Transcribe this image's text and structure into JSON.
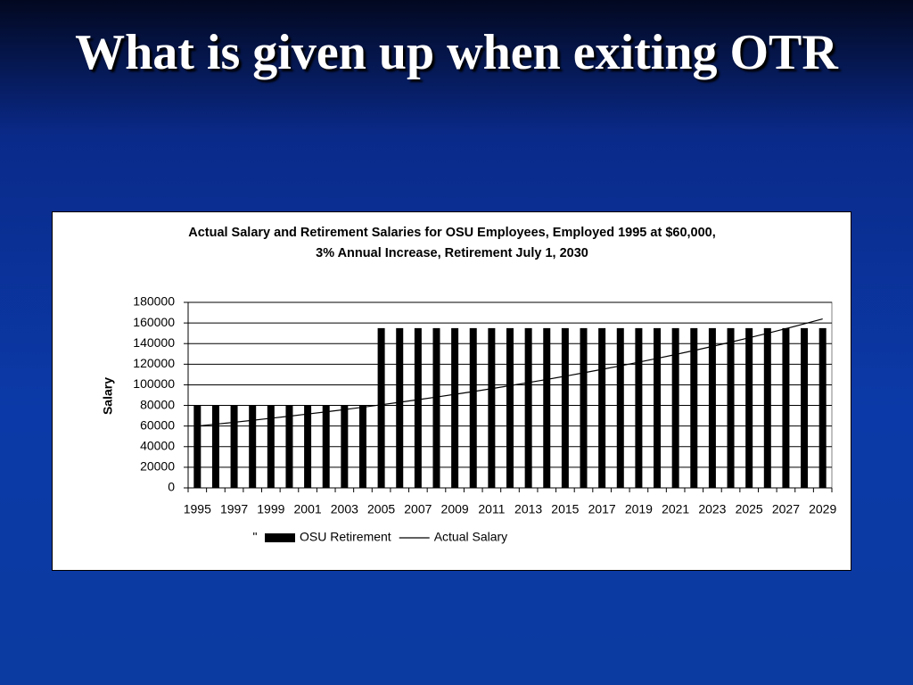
{
  "slide": {
    "title": "What is given up when exiting OTR"
  },
  "chart_data": {
    "type": "bar",
    "title": [
      "Actual Salary and Retirement Salaries for OSU Employees, Employed 1995 at $60,000,",
      "3% Annual Increase, Retirement July 1, 2030"
    ],
    "y_label": "Salary",
    "categories": [
      "1995",
      null,
      "1997",
      null,
      "1999",
      null,
      "2001",
      null,
      "2003",
      null,
      "2005",
      null,
      "2007",
      null,
      "2009",
      null,
      "2011",
      null,
      "2013",
      null,
      "2015",
      null,
      "2017",
      null,
      "2019",
      null,
      "2021",
      null,
      "2023",
      null,
      "2025",
      null,
      "2027",
      null,
      "2029"
    ],
    "series": [
      {
        "name": "OSU Retirement",
        "type": "bar",
        "color": "#000000",
        "values": [
          80000,
          80000,
          80000,
          80000,
          80000,
          80000,
          80000,
          80000,
          80000,
          80000,
          155000,
          155000,
          155000,
          155000,
          155000,
          155000,
          155000,
          155000,
          155000,
          155000,
          155000,
          155000,
          155000,
          155000,
          155000,
          155000,
          155000,
          155000,
          155000,
          155000,
          155000,
          155000,
          155000,
          155000,
          155000
        ]
      },
      {
        "name": "Actual Salary",
        "type": "line",
        "color": "#000000",
        "values": [
          60000,
          61800,
          63654,
          65564,
          67531,
          69556,
          71643,
          73792,
          76006,
          78286,
          80635,
          83054,
          85546,
          88112,
          90755,
          93478,
          96282,
          99171,
          102146,
          105210,
          108367,
          111618,
          114966,
          118415,
          121968,
          125627,
          129395,
          133277,
          137276,
          141394,
          145636,
          150005,
          154505,
          159140,
          163914
        ]
      }
    ],
    "legend_note": "\"",
    "ylim": [
      0,
      180000
    ],
    "yticks": [
      0,
      20000,
      40000,
      60000,
      80000,
      100000,
      120000,
      140000,
      160000,
      180000
    ],
    "grid": true
  }
}
